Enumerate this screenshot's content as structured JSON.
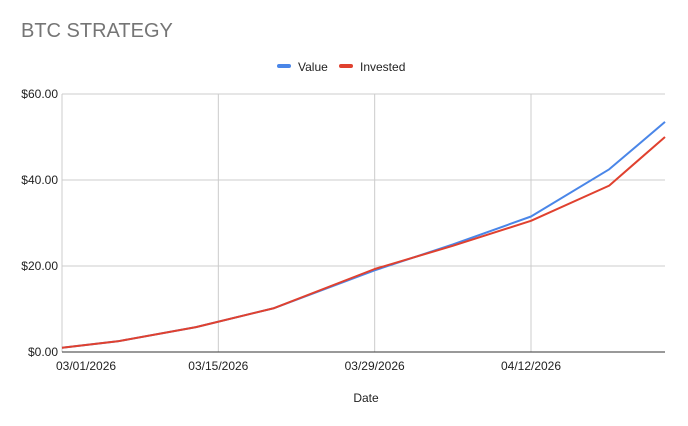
{
  "chart_data": {
    "type": "line",
    "title": "BTC STRATEGY",
    "xlabel": "Date",
    "ylabel": "",
    "x_ticks": [
      {
        "label": "03/01/2026",
        "day": 0
      },
      {
        "label": "03/15/2026",
        "day": 14
      },
      {
        "label": "03/29/2026",
        "day": 28
      },
      {
        "label": "04/12/2026",
        "day": 42
      }
    ],
    "y_ticks": [
      {
        "label": "$0.00",
        "value": 0
      },
      {
        "label": "$20.00",
        "value": 20
      },
      {
        "label": "$40.00",
        "value": 40
      },
      {
        "label": "$60.00",
        "value": 60
      }
    ],
    "xlim": [
      0,
      54
    ],
    "ylim": [
      0,
      60
    ],
    "legend_position": "top",
    "grid": true,
    "x": [
      0,
      5,
      12,
      19,
      28,
      35,
      42,
      49,
      54
    ],
    "series": [
      {
        "name": "Value",
        "color": "#4a86e8",
        "values": [
          1.0,
          2.5,
          5.8,
          10.2,
          19.0,
          25.0,
          31.5,
          42.5,
          53.5
        ]
      },
      {
        "name": "Invested",
        "color": "#e0412f",
        "values": [
          1.0,
          2.5,
          5.8,
          10.2,
          19.3,
          24.7,
          30.5,
          38.7,
          50.0
        ]
      }
    ]
  }
}
